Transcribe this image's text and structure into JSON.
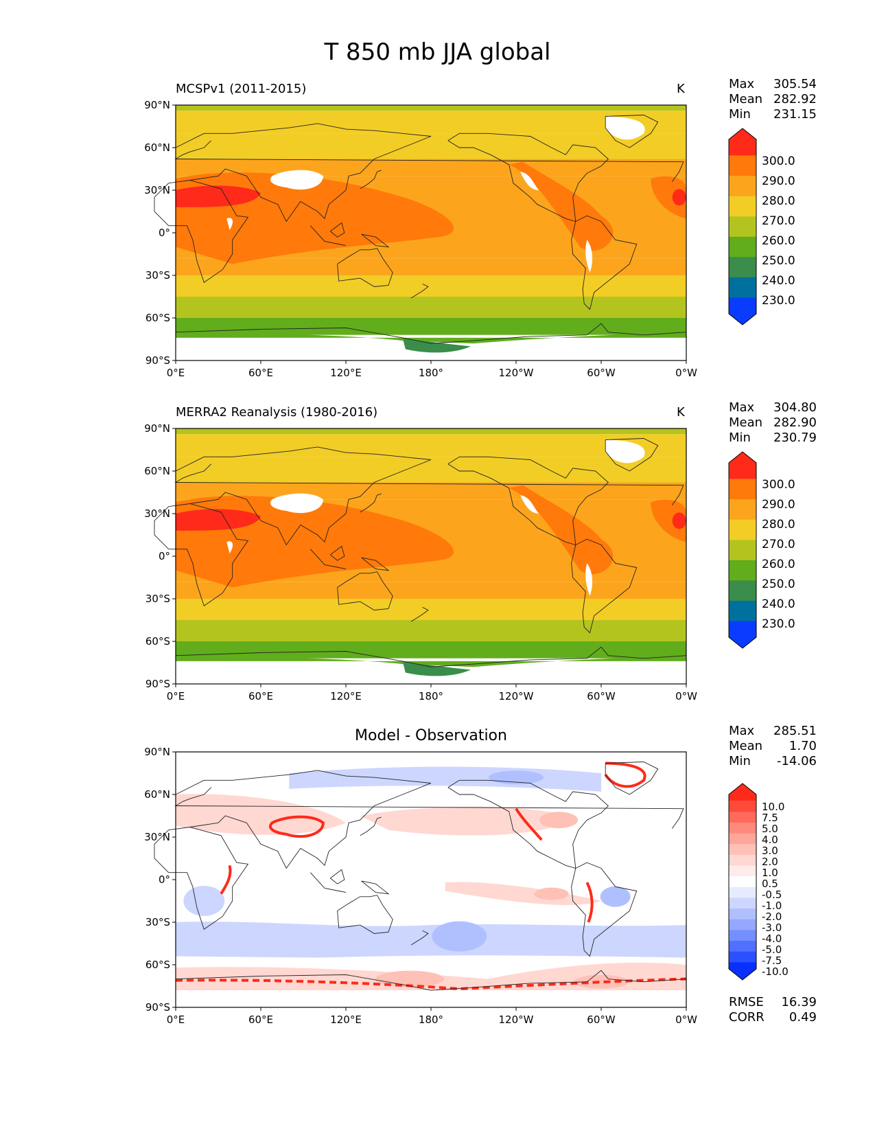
{
  "figure": {
    "title": "T 850 mb JJA global"
  },
  "axes": {
    "lat_ticks": [
      "90°N",
      "60°N",
      "30°N",
      "0°",
      "30°S",
      "60°S",
      "90°S"
    ],
    "lon_ticks": [
      "0°E",
      "60°E",
      "120°E",
      "180°",
      "120°W",
      "60°W",
      "0°W"
    ]
  },
  "panels": [
    {
      "title_left": "MCSPv1 (2011-2015)",
      "title_right": "K",
      "stats": [
        {
          "label": "Max",
          "value": "305.54"
        },
        {
          "label": "Mean",
          "value": "282.92"
        },
        {
          "label": "Min",
          "value": "231.15"
        }
      ],
      "colorbar": {
        "labels": [
          "300.0",
          "290.0",
          "280.0",
          "270.0",
          "260.0",
          "250.0",
          "240.0",
          "230.0"
        ],
        "colors": [
          "#ff2a1a",
          "#ff7a0a",
          "#fca51c",
          "#f2cd26",
          "#b4c41f",
          "#61ad1c",
          "#3a8d4a",
          "#00719e",
          "#0a3cff"
        ]
      }
    },
    {
      "title_left": "MERRA2 Reanalysis (1980-2016)",
      "title_right": "K",
      "stats": [
        {
          "label": "Max",
          "value": "304.80"
        },
        {
          "label": "Mean",
          "value": "282.90"
        },
        {
          "label": "Min",
          "value": "230.79"
        }
      ],
      "colorbar": {
        "labels": [
          "300.0",
          "290.0",
          "280.0",
          "270.0",
          "260.0",
          "250.0",
          "240.0",
          "230.0"
        ],
        "colors": [
          "#ff2a1a",
          "#ff7a0a",
          "#fca51c",
          "#f2cd26",
          "#b4c41f",
          "#61ad1c",
          "#3a8d4a",
          "#00719e",
          "#0a3cff"
        ]
      }
    },
    {
      "title_center": "Model - Observation",
      "stats": [
        {
          "label": "Max",
          "value": "285.51"
        },
        {
          "label": "Mean",
          "value": "1.70"
        },
        {
          "label": "Min",
          "value": "-14.06"
        }
      ],
      "extra_stats": [
        {
          "label": "RMSE",
          "value": "16.39"
        },
        {
          "label": "CORR",
          "value": "0.49"
        }
      ],
      "colorbar": {
        "labels": [
          "10.0",
          "7.5",
          "5.0",
          "4.0",
          "3.0",
          "2.0",
          "1.0",
          "0.5",
          "-0.5",
          "-1.0",
          "-2.0",
          "-3.0",
          "-4.0",
          "-5.0",
          "-7.5",
          "-10.0"
        ],
        "colors": [
          "#ff2a1a",
          "#ff4a3a",
          "#ff6a5c",
          "#ff8a7c",
          "#ffa69a",
          "#ffc0b6",
          "#ffd8d2",
          "#ffecea",
          "#ffffff",
          "#e6ebff",
          "#ccd6ff",
          "#b0c0ff",
          "#94a8ff",
          "#7490ff",
          "#5070ff",
          "#2a50ff",
          "#0a30ff"
        ]
      }
    }
  ]
}
